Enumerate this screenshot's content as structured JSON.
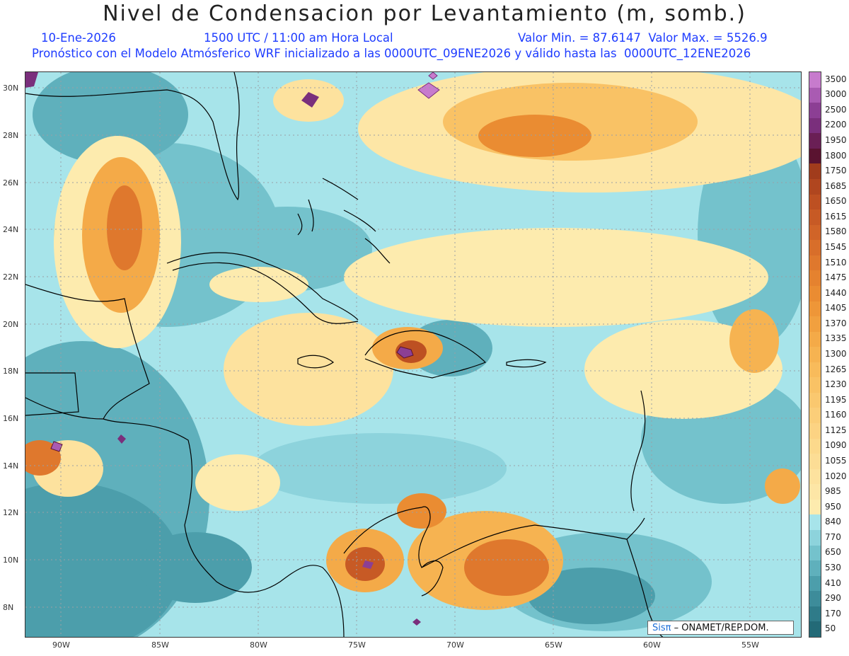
{
  "header": {
    "title": "Nivel de Condensacion por Levantamiento (m, somb.)",
    "date": "10-Ene-2026",
    "time": "1500 UTC / 11:00 am Hora Local",
    "minmax": "Valor Min. = 87.6147  Valor Max. = 5526.9",
    "forecast": "Pronóstico con el Modelo Atmósferico WRF inicializado a las 0000UTC_09ENE2026 y válido hasta las  0000UTC_12ENE2026"
  },
  "axes": {
    "lat_labels": [
      "30N",
      "28N",
      "26N",
      "24N",
      "22N",
      "20N",
      "18N",
      "16N",
      "14N",
      "12N",
      "10N",
      "8N"
    ],
    "lon_labels": [
      "90W",
      "85W",
      "80W",
      "75W",
      "70W",
      "65W",
      "60W",
      "55W"
    ]
  },
  "legend": {
    "labels": [
      "3500",
      "3000",
      "2500",
      "2200",
      "1950",
      "1800",
      "1750",
      "1685",
      "1650",
      "1615",
      "1580",
      "1545",
      "1510",
      "1475",
      "1440",
      "1405",
      "1370",
      "1335",
      "1300",
      "1265",
      "1230",
      "1195",
      "1160",
      "1125",
      "1090",
      "1055",
      "1020",
      "985",
      "950",
      "840",
      "770",
      "650",
      "530",
      "410",
      "290",
      "170",
      "50"
    ],
    "colors": [
      "#c77bcd",
      "#a95bb2",
      "#8c3f94",
      "#7a2f7c",
      "#6a1f55",
      "#5a1330",
      "#a13c1c",
      "#b0461f",
      "#bd5022",
      "#c75a25",
      "#d06428",
      "#d86e2a",
      "#df782d",
      "#e5822f",
      "#ea8c32",
      "#ee9638",
      "#f1a03f",
      "#f4aa48",
      "#f6b351",
      "#f8bb5b",
      "#f9c265",
      "#fac86f",
      "#fbce79",
      "#fcd383",
      "#fcd98c",
      "#fcdd95",
      "#fde29e",
      "#fde6a6",
      "#fdebae",
      "#a7e4ea",
      "#8dd3dc",
      "#74c2cc",
      "#5fb0bc",
      "#4c9eab",
      "#3d8c9a",
      "#2f7b89",
      "#236a77"
    ]
  },
  "credit": {
    "sis": "Sisπ",
    "org": " – ONAMET/REP.DOM."
  }
}
